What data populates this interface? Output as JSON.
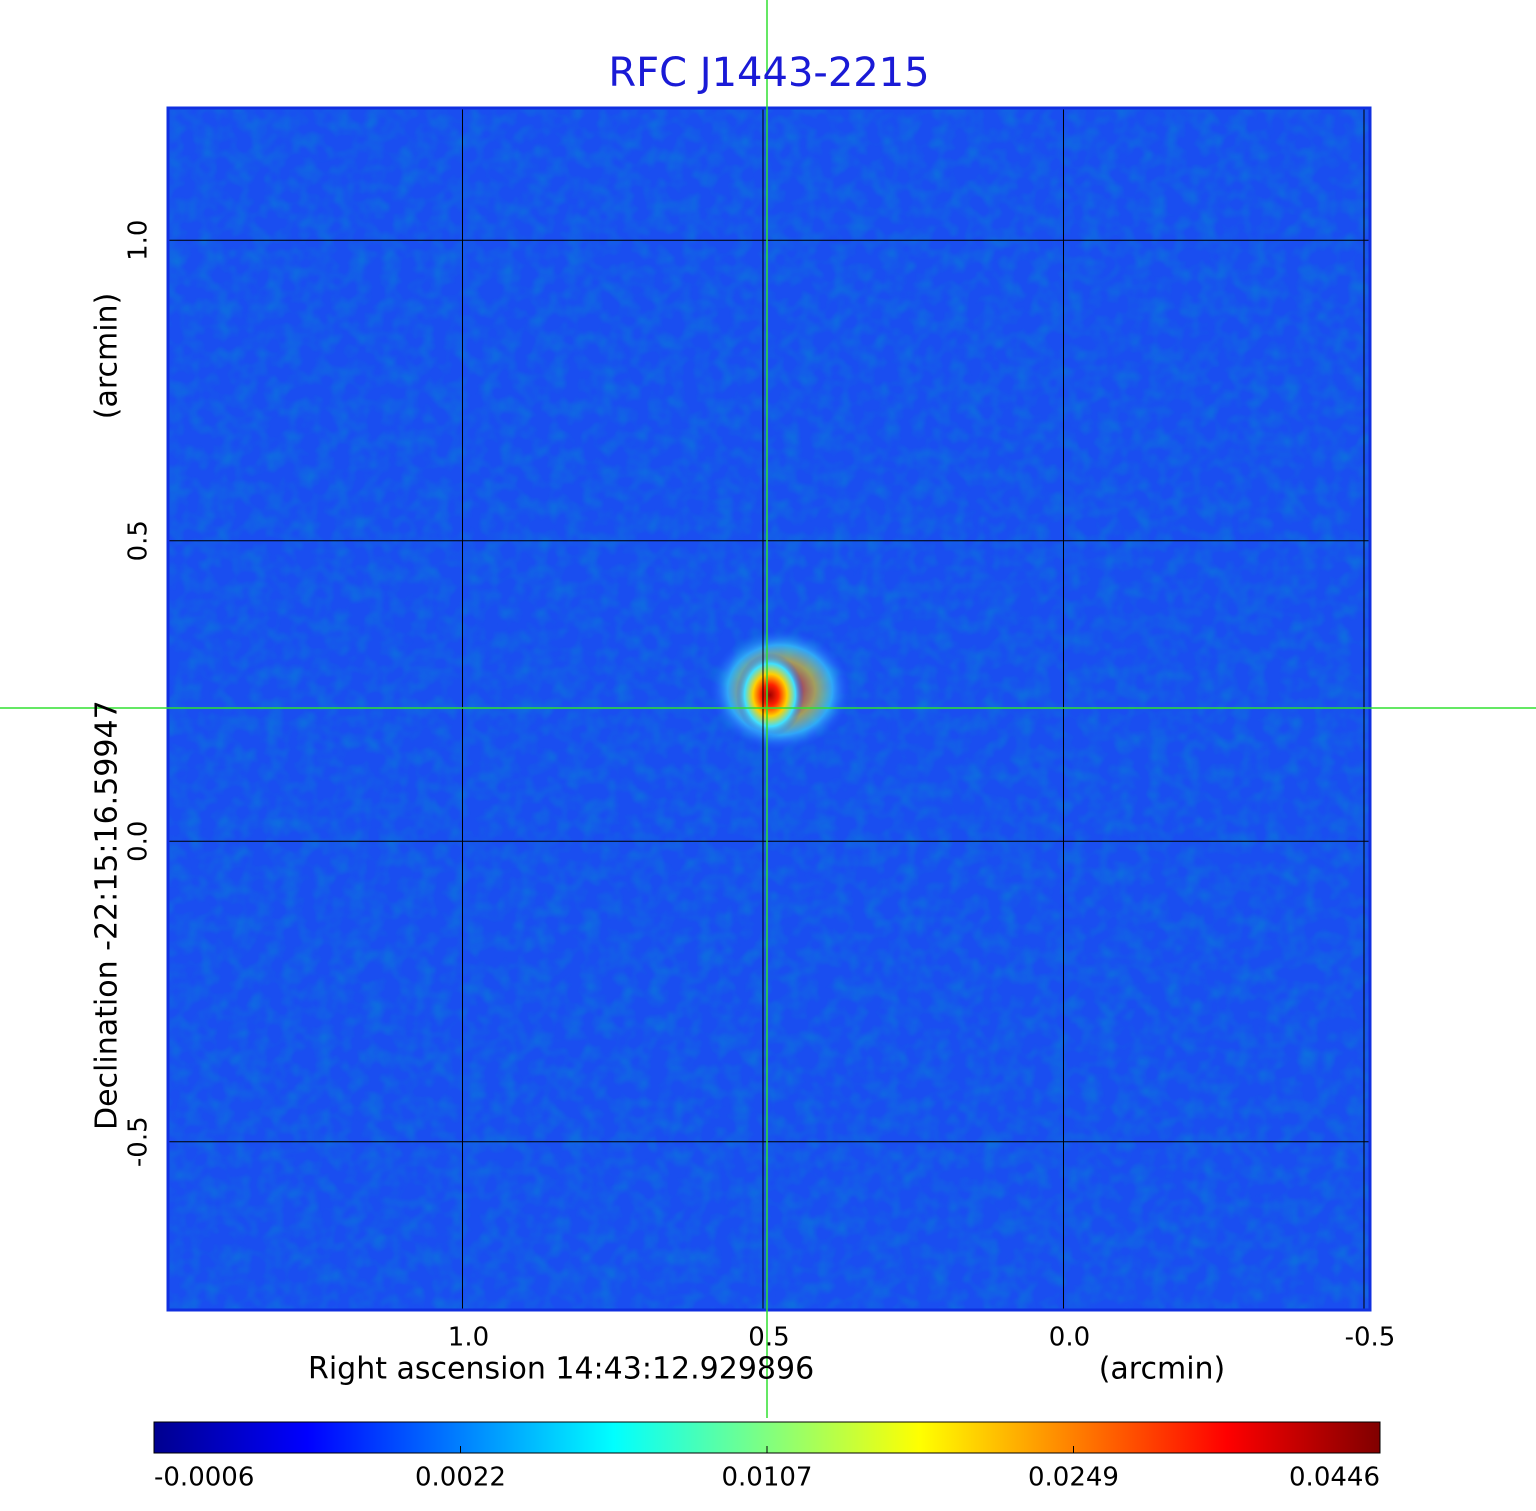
{
  "chart_data": {
    "type": "image",
    "title": "RFC J1443-2215",
    "x_label": "Right ascension  14:43:12.929896",
    "x_unit": "(arcmin)",
    "y_label": "Declination  -22:15:16.59947",
    "y_unit": "(arcmin)",
    "xlim": [
      1.49,
      -0.51
    ],
    "ylim": [
      -0.78,
      1.22
    ],
    "xticks": [
      {
        "value": 1,
        "label": "1.0"
      },
      0.5,
      {
        "value": 0,
        "label": "0.0"
      },
      -0.5
    ],
    "yticks": [
      {
        "value": 1,
        "label": "1.0"
      },
      0.5,
      {
        "value": 0,
        "label": "0.0"
      },
      -0.5
    ],
    "grid": true,
    "colorbar": {
      "ticks": [
        -0.0006,
        0.0022,
        0.0107,
        0.0249,
        0.0446
      ],
      "colors": [
        "#00008f",
        "#0000ff",
        "#0080ff",
        "#00ffff",
        "#80ff80",
        "#ffff00",
        "#ff8000",
        "#ff0000",
        "#800000"
      ]
    }
  }
}
